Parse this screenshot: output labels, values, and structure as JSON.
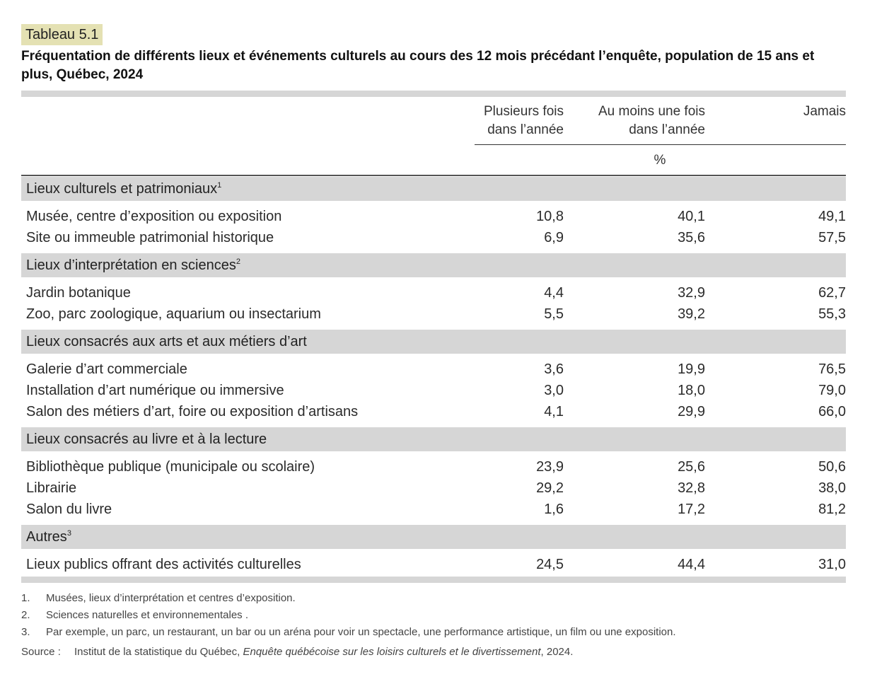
{
  "table_label": "Tableau 5.1",
  "title": "Fréquentation de différents lieux et événements culturels au cours des 12 mois précédant l’enquête, population de 15 ans et plus, Québec, 2024",
  "columns": {
    "c1_l1": "Plusieurs fois",
    "c1_l2": "dans l’année",
    "c2_l1": "Au moins une fois",
    "c2_l2": "dans l’année",
    "c3": "Jamais",
    "unit": "%"
  },
  "sections": [
    {
      "label": "Lieux culturels et patrimoniaux",
      "sup": "1",
      "rows": [
        {
          "label": "Musée, centre d’exposition ou exposition",
          "values": [
            "10,8",
            "40,1",
            "49,1"
          ]
        },
        {
          "label": "Site ou immeuble patrimonial historique",
          "values": [
            "6,9",
            "35,6",
            "57,5"
          ]
        }
      ]
    },
    {
      "label": "Lieux d’interprétation en sciences",
      "sup": "2",
      "rows": [
        {
          "label": "Jardin botanique",
          "values": [
            "4,4",
            "32,9",
            "62,7"
          ]
        },
        {
          "label": "Zoo, parc zoologique, aquarium ou insectarium",
          "values": [
            "5,5",
            "39,2",
            "55,3"
          ]
        }
      ]
    },
    {
      "label": "Lieux consacrés aux arts et aux métiers d’art",
      "sup": "",
      "rows": [
        {
          "label": "Galerie d’art commerciale",
          "values": [
            "3,6",
            "19,9",
            "76,5"
          ]
        },
        {
          "label": "Installation d’art numérique ou immersive",
          "values": [
            "3,0",
            "18,0",
            "79,0"
          ]
        },
        {
          "label": "Salon des métiers d’art, foire ou exposition d’artisans",
          "values": [
            "4,1",
            "29,9",
            "66,0"
          ]
        }
      ]
    },
    {
      "label": "Lieux consacrés au livre et à la lecture",
      "sup": "",
      "rows": [
        {
          "label": "Bibliothèque publique (municipale ou scolaire)",
          "values": [
            "23,9",
            "25,6",
            "50,6"
          ]
        },
        {
          "label": "Librairie",
          "values": [
            "29,2",
            "32,8",
            "38,0"
          ]
        },
        {
          "label": "Salon du livre",
          "values": [
            "1,6",
            "17,2",
            "81,2"
          ]
        }
      ]
    },
    {
      "label": "Autres",
      "sup": "3",
      "rows": [
        {
          "label": "Lieux publics offrant des activités culturelles",
          "values": [
            "24,5",
            "44,4",
            "31,0"
          ]
        }
      ]
    }
  ],
  "footnotes": [
    {
      "n": "1.",
      "text": "Musées, lieux d’interprétation et centres d’exposition."
    },
    {
      "n": "2.",
      "text": "Sciences naturelles et environnementales ."
    },
    {
      "n": "3.",
      "text": "Par exemple, un parc, un restaurant, un bar ou un aréna pour voir un spectacle, une performance artistique, un film ou une exposition."
    }
  ],
  "source": {
    "label": "Source :",
    "text": "Institut de la statistique du Québec, ",
    "title": "Enquête québécoise sur les loisirs culturels et le divertissement",
    "tail": ", 2024."
  }
}
